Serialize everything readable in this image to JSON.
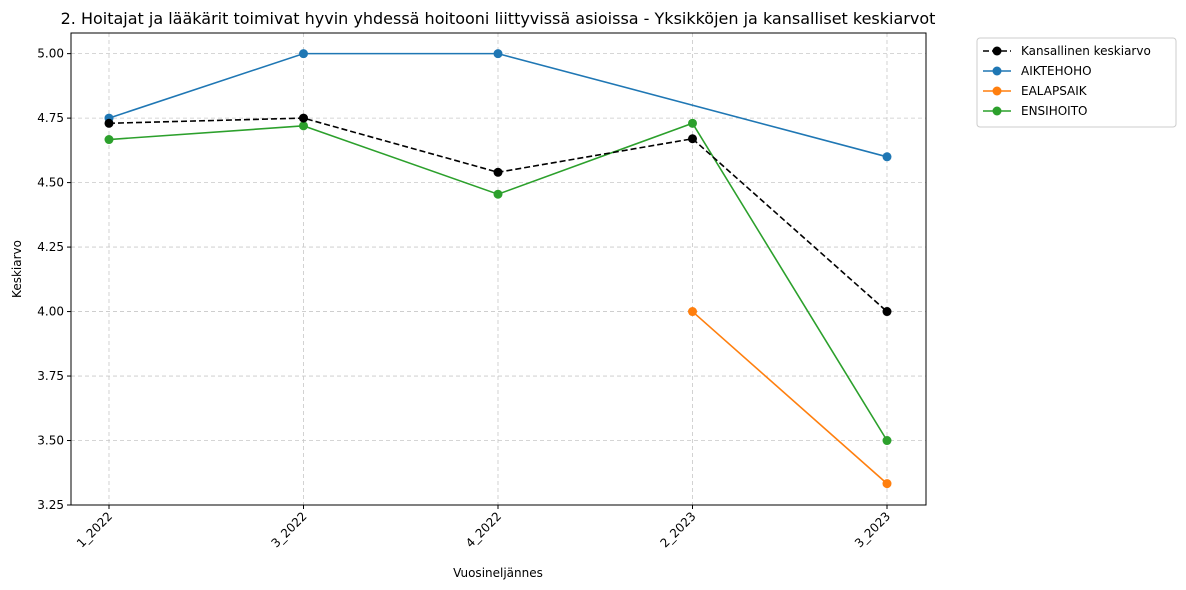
{
  "chart_data": {
    "type": "line",
    "title": "2. Hoitajat ja lääkärit toimivat hyvin yhdessä hoitooni liittyvissä asioissa - Yksikköjen ja kansalliset keskiarvot",
    "xlabel": "Vuosineljännes",
    "ylabel": "Keskiarvo",
    "categories": [
      "1_2022",
      "3_2022",
      "4_2022",
      "2_2023",
      "3_2023"
    ],
    "ylim": [
      3.25,
      5.08
    ],
    "yticks": [
      "3.25",
      "3.50",
      "3.75",
      "4.00",
      "4.25",
      "4.50",
      "4.75",
      "5.00"
    ],
    "grid": true,
    "legend_position": "outside-top-right",
    "series": [
      {
        "name": "Kansallinen keskiarvo",
        "color": "#000000",
        "dashed": true,
        "values": [
          4.73,
          4.75,
          4.54,
          4.67,
          4.0
        ]
      },
      {
        "name": "AIKTEHOHO",
        "color": "#1f77b4",
        "dashed": false,
        "values": [
          4.75,
          5.0,
          5.0,
          null,
          4.6
        ]
      },
      {
        "name": "EALAPSAIK",
        "color": "#ff7f0e",
        "dashed": false,
        "values": [
          null,
          null,
          null,
          4.0,
          3.333
        ]
      },
      {
        "name": "ENSIHOITO",
        "color": "#2ca02c",
        "dashed": false,
        "values": [
          4.667,
          4.72,
          4.455,
          4.73,
          3.5
        ]
      }
    ]
  }
}
